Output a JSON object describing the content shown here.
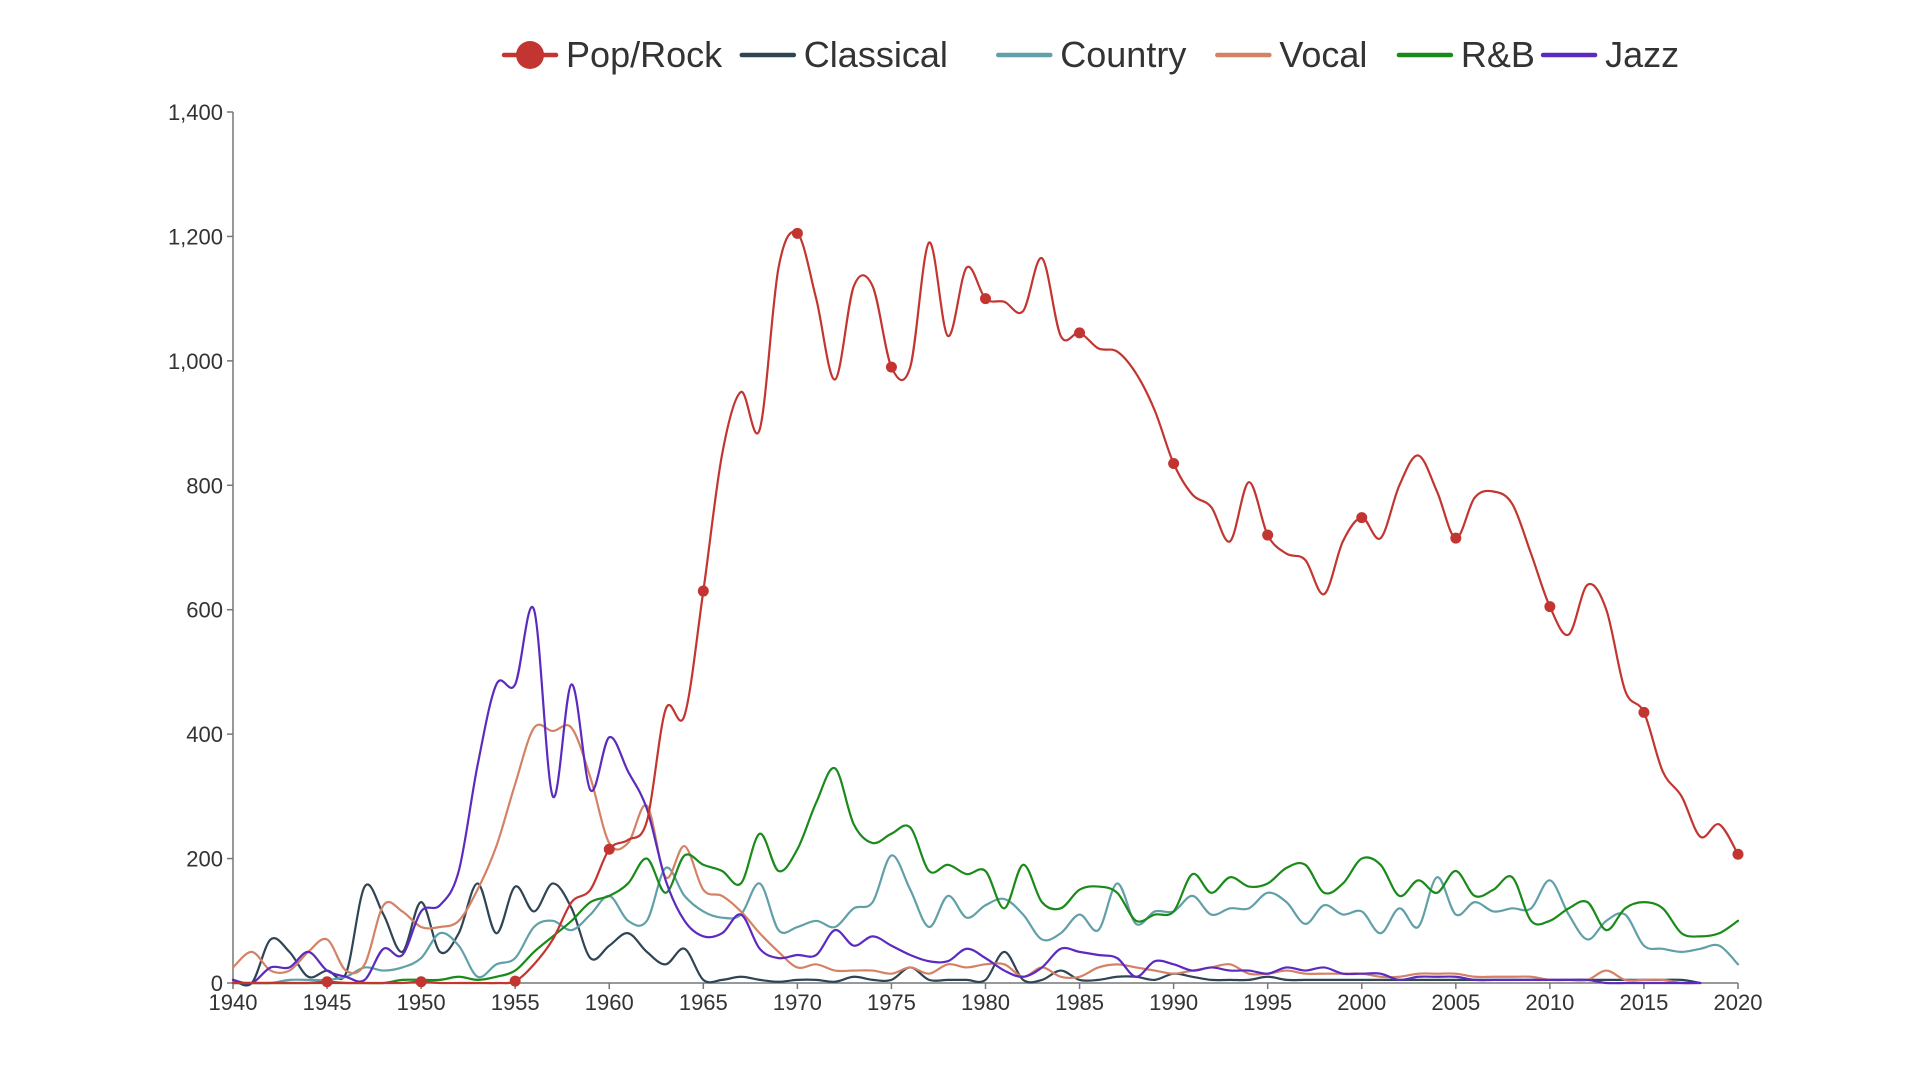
{
  "chart_data": {
    "type": "line",
    "title": "",
    "xlabel": "",
    "ylabel": "",
    "xlim": [
      1940,
      2020
    ],
    "ylim": [
      0,
      1400
    ],
    "x_ticks": [
      1940,
      1945,
      1950,
      1955,
      1960,
      1965,
      1970,
      1975,
      1980,
      1985,
      1990,
      1995,
      2000,
      2005,
      2010,
      2015,
      2020
    ],
    "x_tick_labels": [
      "1940",
      "1945",
      "1950",
      "1955",
      "1960",
      "1965",
      "1970",
      "1975",
      "1980",
      "1985",
      "1990",
      "1995",
      "2000",
      "2005",
      "2010",
      "2015",
      "2020"
    ],
    "y_ticks": [
      0,
      200,
      400,
      600,
      800,
      1000,
      1200,
      1400
    ],
    "y_tick_labels": [
      "0",
      "200",
      "400",
      "600",
      "800",
      "1,000",
      "1,200",
      "1,400"
    ],
    "grid": false,
    "legend_position": "top",
    "marker_years": [
      1945,
      1950,
      1955,
      1960,
      1965,
      1970,
      1975,
      1980,
      1985,
      1990,
      1995,
      2000,
      2005,
      2010,
      2015,
      2020
    ],
    "series": [
      {
        "name": "Pop/Rock",
        "color": "#c23531",
        "markers": true,
        "x": [
          1940,
          1941,
          1942,
          1943,
          1944,
          1945,
          1946,
          1947,
          1948,
          1949,
          1950,
          1951,
          1952,
          1953,
          1954,
          1955,
          1956,
          1957,
          1958,
          1959,
          1960,
          1961,
          1962,
          1963,
          1964,
          1965,
          1966,
          1967,
          1968,
          1969,
          1970,
          1971,
          1972,
          1973,
          1974,
          1975,
          1976,
          1977,
          1978,
          1979,
          1980,
          1981,
          1982,
          1983,
          1984,
          1985,
          1986,
          1987,
          1988,
          1989,
          1990,
          1991,
          1992,
          1993,
          1994,
          1995,
          1996,
          1997,
          1998,
          1999,
          2000,
          2001,
          2002,
          2003,
          2004,
          2005,
          2006,
          2007,
          2008,
          2009,
          2010,
          2011,
          2012,
          2013,
          2014,
          2015,
          2016,
          2017,
          2018,
          2019,
          2020
        ],
        "values": [
          0,
          0,
          0,
          0,
          0,
          2,
          0,
          0,
          0,
          0,
          2,
          0,
          0,
          0,
          0,
          3,
          30,
          70,
          130,
          150,
          215,
          230,
          260,
          440,
          430,
          630,
          850,
          950,
          890,
          1150,
          1205,
          1100,
          970,
          1120,
          1120,
          990,
          990,
          1190,
          1040,
          1150,
          1100,
          1095,
          1080,
          1165,
          1040,
          1045,
          1020,
          1015,
          980,
          920,
          835,
          785,
          765,
          710,
          805,
          720,
          690,
          680,
          625,
          710,
          748,
          715,
          800,
          848,
          790,
          715,
          780,
          790,
          770,
          690,
          605,
          560,
          640,
          600,
          470,
          435,
          340,
          300,
          235,
          255,
          207
        ]
      },
      {
        "name": "Classical",
        "color": "#2f4554",
        "markers": false,
        "x": [
          1940,
          1941,
          1942,
          1943,
          1944,
          1945,
          1946,
          1947,
          1948,
          1949,
          1950,
          1951,
          1952,
          1953,
          1954,
          1955,
          1956,
          1957,
          1958,
          1959,
          1960,
          1961,
          1962,
          1963,
          1964,
          1965,
          1966,
          1967,
          1968,
          1969,
          1970,
          1971,
          1972,
          1973,
          1974,
          1975,
          1976,
          1977,
          1978,
          1979,
          1980,
          1981,
          1982,
          1983,
          1984,
          1985,
          1986,
          1987,
          1988,
          1989,
          1990,
          1991,
          1992,
          1993,
          1994,
          1995,
          1996,
          1997,
          1998,
          1999,
          2000,
          2001,
          2002,
          2003,
          2004,
          2005,
          2006,
          2007,
          2008,
          2009,
          2010,
          2011,
          2012,
          2013,
          2014,
          2015,
          2016,
          2017,
          2018
        ],
        "values": [
          5,
          0,
          70,
          50,
          10,
          20,
          15,
          155,
          110,
          50,
          130,
          50,
          80,
          160,
          80,
          155,
          115,
          160,
          120,
          40,
          60,
          80,
          50,
          30,
          55,
          5,
          5,
          10,
          5,
          2,
          5,
          5,
          2,
          10,
          5,
          5,
          25,
          5,
          5,
          5,
          5,
          50,
          5,
          5,
          20,
          5,
          5,
          10,
          10,
          5,
          15,
          10,
          5,
          5,
          5,
          10,
          5,
          5,
          5,
          5,
          5,
          5,
          5,
          5,
          5,
          5,
          5,
          5,
          5,
          5,
          5,
          5,
          5,
          5,
          5,
          5,
          5,
          5,
          0
        ]
      },
      {
        "name": "Country",
        "color": "#61a0a8",
        "markers": false,
        "x": [
          1940,
          1941,
          1942,
          1943,
          1944,
          1945,
          1946,
          1947,
          1948,
          1949,
          1950,
          1951,
          1952,
          1953,
          1954,
          1955,
          1956,
          1957,
          1958,
          1959,
          1960,
          1961,
          1962,
          1963,
          1964,
          1965,
          1966,
          1967,
          1968,
          1969,
          1970,
          1971,
          1972,
          1973,
          1974,
          1975,
          1976,
          1977,
          1978,
          1979,
          1980,
          1981,
          1982,
          1983,
          1984,
          1985,
          1986,
          1987,
          1988,
          1989,
          1990,
          1991,
          1992,
          1993,
          1994,
          1995,
          1996,
          1997,
          1998,
          1999,
          2000,
          2001,
          2002,
          2003,
          2004,
          2005,
          2006,
          2007,
          2008,
          2009,
          2010,
          2011,
          2012,
          2013,
          2014,
          2015,
          2016,
          2017,
          2018,
          2019,
          2020
        ],
        "values": [
          0,
          0,
          0,
          5,
          5,
          5,
          10,
          25,
          20,
          25,
          40,
          80,
          60,
          10,
          30,
          40,
          90,
          100,
          85,
          110,
          140,
          100,
          100,
          185,
          140,
          115,
          105,
          110,
          160,
          85,
          90,
          100,
          90,
          120,
          130,
          205,
          150,
          90,
          140,
          105,
          125,
          135,
          110,
          70,
          80,
          110,
          85,
          160,
          95,
          115,
          115,
          140,
          110,
          120,
          120,
          145,
          130,
          95,
          125,
          110,
          115,
          80,
          120,
          90,
          170,
          110,
          130,
          115,
          120,
          120,
          165,
          110,
          70,
          100,
          110,
          60,
          55,
          50,
          55,
          60,
          30
        ]
      },
      {
        "name": "Vocal",
        "color": "#d48265",
        "markers": false,
        "x": [
          1940,
          1941,
          1942,
          1943,
          1944,
          1945,
          1946,
          1947,
          1948,
          1949,
          1950,
          1951,
          1952,
          1953,
          1954,
          1955,
          1956,
          1957,
          1958,
          1959,
          1960,
          1961,
          1962,
          1963,
          1964,
          1965,
          1966,
          1967,
          1968,
          1969,
          1970,
          1971,
          1972,
          1973,
          1974,
          1975,
          1976,
          1977,
          1978,
          1979,
          1980,
          1981,
          1982,
          1983,
          1984,
          1985,
          1986,
          1987,
          1988,
          1989,
          1990,
          1991,
          1992,
          1993,
          1994,
          1995,
          1996,
          1997,
          1998,
          1999,
          2000,
          2001,
          2002,
          2003,
          2004,
          2005,
          2006,
          2007,
          2008,
          2009,
          2010,
          2011,
          2012,
          2013,
          2014,
          2015,
          2016,
          2017,
          2018
        ],
        "values": [
          25,
          50,
          20,
          20,
          50,
          70,
          20,
          30,
          125,
          115,
          90,
          90,
          100,
          150,
          220,
          320,
          410,
          405,
          410,
          330,
          225,
          225,
          285,
          170,
          220,
          150,
          140,
          115,
          80,
          50,
          25,
          30,
          20,
          20,
          20,
          15,
          25,
          15,
          30,
          25,
          30,
          30,
          10,
          25,
          10,
          10,
          25,
          30,
          25,
          20,
          15,
          20,
          25,
          30,
          15,
          15,
          20,
          15,
          15,
          15,
          15,
          10,
          10,
          15,
          15,
          15,
          10,
          10,
          10,
          10,
          5,
          5,
          5,
          20,
          5,
          5,
          5,
          0,
          0
        ]
      },
      {
        "name": "R&B",
        "color": "#1a8a1a",
        "markers": false,
        "x": [
          1940,
          1941,
          1942,
          1943,
          1944,
          1945,
          1946,
          1947,
          1948,
          1949,
          1950,
          1951,
          1952,
          1953,
          1954,
          1955,
          1956,
          1957,
          1958,
          1959,
          1960,
          1961,
          1962,
          1963,
          1964,
          1965,
          1966,
          1967,
          1968,
          1969,
          1970,
          1971,
          1972,
          1973,
          1974,
          1975,
          1976,
          1977,
          1978,
          1979,
          1980,
          1981,
          1982,
          1983,
          1984,
          1985,
          1986,
          1987,
          1988,
          1989,
          1990,
          1991,
          1992,
          1993,
          1994,
          1995,
          1996,
          1997,
          1998,
          1999,
          2000,
          2001,
          2002,
          2003,
          2004,
          2005,
          2006,
          2007,
          2008,
          2009,
          2010,
          2011,
          2012,
          2013,
          2014,
          2015,
          2016,
          2017,
          2018,
          2019,
          2020
        ],
        "values": [
          0,
          0,
          0,
          0,
          0,
          0,
          0,
          0,
          0,
          5,
          5,
          5,
          10,
          5,
          10,
          20,
          50,
          75,
          100,
          130,
          140,
          160,
          200,
          145,
          205,
          190,
          180,
          160,
          240,
          180,
          215,
          290,
          345,
          255,
          225,
          240,
          250,
          180,
          190,
          175,
          180,
          120,
          190,
          130,
          120,
          150,
          155,
          145,
          100,
          110,
          115,
          175,
          145,
          170,
          155,
          160,
          185,
          190,
          145,
          160,
          200,
          190,
          140,
          165,
          145,
          180,
          140,
          150,
          170,
          100,
          100,
          120,
          130,
          85,
          120,
          130,
          120,
          80,
          75,
          80,
          100
        ]
      },
      {
        "name": "Jazz",
        "color": "#5b2bbf",
        "markers": false,
        "x": [
          1940,
          1941,
          1942,
          1943,
          1944,
          1945,
          1946,
          1947,
          1948,
          1949,
          1950,
          1951,
          1952,
          1953,
          1954,
          1955,
          1956,
          1957,
          1958,
          1959,
          1960,
          1961,
          1962,
          1963,
          1964,
          1965,
          1966,
          1967,
          1968,
          1969,
          1970,
          1971,
          1972,
          1973,
          1974,
          1975,
          1976,
          1977,
          1978,
          1979,
          1980,
          1981,
          1982,
          1983,
          1984,
          1985,
          1986,
          1987,
          1988,
          1989,
          1990,
          1991,
          1992,
          1993,
          1994,
          1995,
          1996,
          1997,
          1998,
          1999,
          2000,
          2001,
          2002,
          2003,
          2004,
          2005,
          2006,
          2007,
          2008,
          2009,
          2010,
          2011,
          2012,
          2013,
          2014,
          2015,
          2016,
          2017,
          2018
        ],
        "values": [
          5,
          0,
          25,
          25,
          50,
          20,
          10,
          5,
          55,
          45,
          115,
          125,
          180,
          350,
          480,
          480,
          600,
          300,
          480,
          310,
          395,
          340,
          280,
          165,
          100,
          75,
          80,
          110,
          55,
          40,
          45,
          45,
          85,
          60,
          75,
          60,
          45,
          35,
          35,
          55,
          40,
          20,
          10,
          25,
          55,
          50,
          45,
          40,
          10,
          35,
          30,
          20,
          25,
          20,
          20,
          15,
          25,
          20,
          25,
          15,
          15,
          15,
          5,
          10,
          10,
          10,
          5,
          5,
          5,
          5,
          5,
          5,
          5,
          0,
          0,
          0,
          0,
          0,
          0
        ]
      }
    ]
  }
}
